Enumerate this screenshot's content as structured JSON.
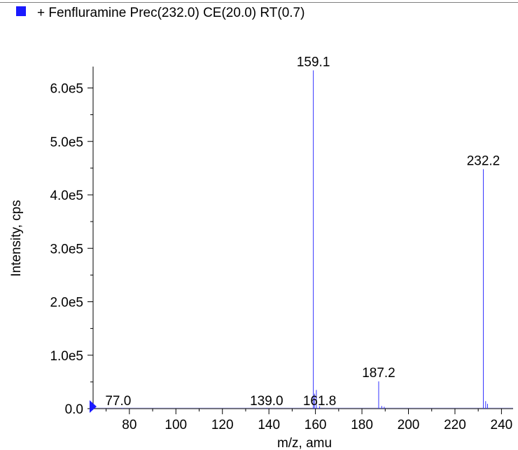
{
  "legend": {
    "label": "+ Fenfluramine Prec(232.0) CE(20.0) RT(0.7)",
    "swatch_color": "#1a1aff"
  },
  "chart_data": {
    "type": "bar",
    "title": "",
    "xlabel": "m/z, amu",
    "ylabel": "Intensity, cps",
    "xlim": [
      65,
      245
    ],
    "ylim": [
      0,
      640000
    ],
    "x_ticks": [
      80,
      100,
      120,
      140,
      160,
      180,
      200,
      220,
      240
    ],
    "x_tick_labels": [
      "80",
      "100",
      "120",
      "140",
      "160",
      "180",
      "200",
      "220",
      "240"
    ],
    "y_ticks": [
      0,
      100000,
      200000,
      300000,
      400000,
      500000,
      600000
    ],
    "y_tick_labels": [
      "0.0",
      "1.0e5",
      "2.0e5",
      "3.0e5",
      "4.0e5",
      "5.0e5",
      "6.0e5"
    ],
    "peak_color": "#3333ff",
    "series": [
      {
        "x": [
          77.0,
          139.0,
          159.1,
          159.6,
          160.4,
          161.8,
          187.2,
          188.5,
          189.6,
          232.2,
          233.2,
          234.0
        ],
        "values": [
          1000,
          1200,
          633000,
          28000,
          35000,
          4500,
          51000,
          5000,
          3500,
          448000,
          14000,
          9000
        ]
      }
    ],
    "peak_labels": [
      {
        "x": 159.1,
        "y": 633000,
        "text": "159.1"
      },
      {
        "x": 232.2,
        "y": 448000,
        "text": "232.2"
      },
      {
        "x": 187.2,
        "y": 51000,
        "text": "187.2"
      },
      {
        "x": 161.8,
        "y": 4500,
        "text": "161.8"
      },
      {
        "x": 139.0,
        "y": 1200,
        "text": "139.0"
      },
      {
        "x": 77.0,
        "y": 1000,
        "text": "77.0"
      }
    ]
  }
}
